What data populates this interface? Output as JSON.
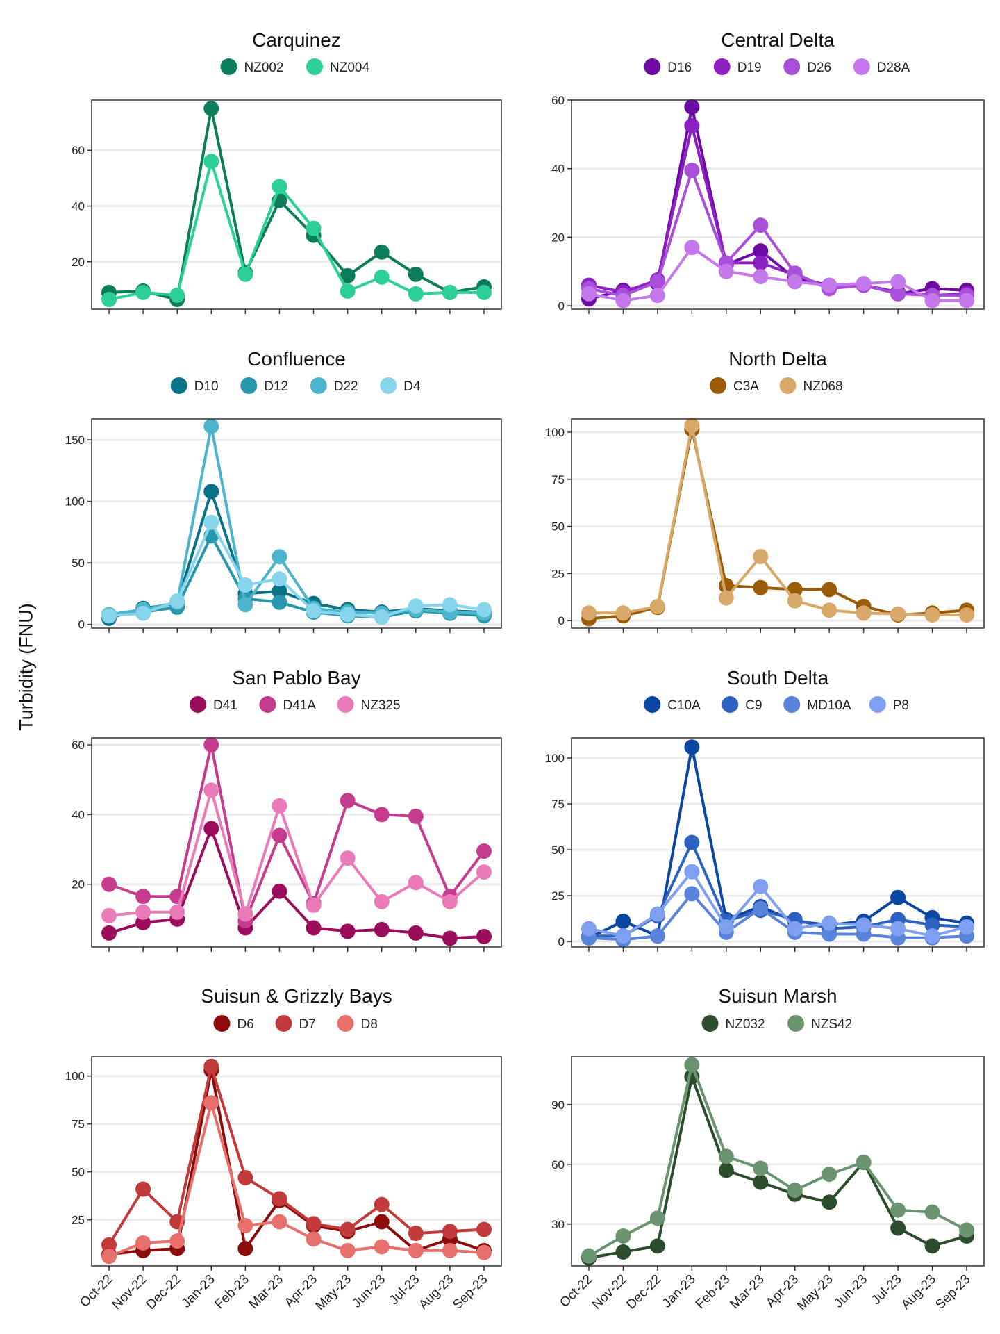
{
  "figure": {
    "y_axis_label": "Turbidity (FNU)",
    "x_tick_labels": [
      "Oct-22",
      "Nov-22",
      "Dec-22",
      "Jan-23",
      "Feb-23",
      "Mar-23",
      "Apr-23",
      "May-23",
      "Jun-23",
      "Jul-23",
      "Aug-23",
      "Sep-23"
    ]
  },
  "chart_data": [
    {
      "type": "line",
      "title": "Carquinez",
      "x": [
        "Oct-22",
        "Nov-22",
        "Dec-22",
        "Jan-23",
        "Feb-23",
        "Mar-23",
        "Apr-23",
        "May-23",
        "Jun-23",
        "Jul-23",
        "Aug-23",
        "Sep-23"
      ],
      "ylim": [
        3,
        78
      ],
      "yticks": [
        20,
        40,
        60
      ],
      "grid": "horizontal",
      "legend_position": "top",
      "series": [
        {
          "name": "NZ002",
          "color": "#0b7d5a",
          "values": [
            9,
            9.5,
            6.5,
            75,
            16,
            42,
            29.5,
            15,
            23.5,
            15.5,
            9,
            11
          ]
        },
        {
          "name": "NZ004",
          "color": "#2ccf98",
          "values": [
            6.5,
            9,
            8,
            56,
            15.5,
            47,
            32,
            9.5,
            14.5,
            8.5,
            9,
            9
          ]
        }
      ]
    },
    {
      "type": "line",
      "title": "Central Delta",
      "x": [
        "Oct-22",
        "Nov-22",
        "Dec-22",
        "Jan-23",
        "Feb-23",
        "Mar-23",
        "Apr-23",
        "May-23",
        "Jun-23",
        "Jul-23",
        "Aug-23",
        "Sep-23"
      ],
      "ylim": [
        -1,
        60
      ],
      "yticks": [
        0,
        20,
        40,
        60
      ],
      "grid": "horizontal",
      "legend_position": "top",
      "series": [
        {
          "name": "D16",
          "color": "#6d0aa3",
          "values": [
            2,
            4.5,
            6.5,
            58,
            12,
            16,
            8,
            6,
            6,
            3.5,
            5,
            4.5
          ]
        },
        {
          "name": "D19",
          "color": "#8c20c2",
          "values": [
            6,
            4,
            7.5,
            52.5,
            12.5,
            12.5,
            9,
            5,
            6,
            4,
            3,
            3.5
          ]
        },
        {
          "name": "D26",
          "color": "#a94fd9",
          "values": [
            5,
            3,
            7,
            39.5,
            12.5,
            23.5,
            9.5,
            5,
            6,
            3.5,
            3,
            3
          ]
        },
        {
          "name": "D28A",
          "color": "#c577ec",
          "values": [
            3.5,
            1.5,
            3,
            17,
            10,
            8.5,
            7,
            6,
            6.5,
            7,
            1.5,
            1.5
          ]
        }
      ]
    },
    {
      "type": "line",
      "title": "Confluence",
      "x": [
        "Oct-22",
        "Nov-22",
        "Dec-22",
        "Jan-23",
        "Feb-23",
        "Mar-23",
        "Apr-23",
        "May-23",
        "Jun-23",
        "Jul-23",
        "Aug-23",
        "Sep-23"
      ],
      "ylim": [
        -3,
        167
      ],
      "yticks": [
        0,
        50,
        100,
        150
      ],
      "grid": "horizontal",
      "legend_position": "top",
      "series": [
        {
          "name": "D10",
          "color": "#0b7388",
          "values": [
            5,
            13,
            17,
            108,
            25,
            27,
            17,
            12,
            10,
            13,
            11,
            10
          ]
        },
        {
          "name": "D12",
          "color": "#2797ad",
          "values": [
            7,
            10,
            14,
            72,
            21,
            18,
            10,
            7,
            6,
            11,
            9,
            7
          ]
        },
        {
          "name": "D22",
          "color": "#4cb4cd",
          "values": [
            8,
            12,
            18,
            161,
            16,
            55,
            13,
            10,
            9,
            12,
            10,
            9
          ]
        },
        {
          "name": "D4",
          "color": "#86d5ec",
          "values": [
            7,
            9,
            19,
            83,
            32,
            37,
            11,
            8,
            6,
            15,
            16,
            12
          ]
        }
      ]
    },
    {
      "type": "line",
      "title": "North Delta",
      "x": [
        "Oct-22",
        "Nov-22",
        "Dec-22",
        "Jan-23",
        "Feb-23",
        "Mar-23",
        "Apr-23",
        "May-23",
        "Jun-23",
        "Jul-23",
        "Aug-23",
        "Sep-23"
      ],
      "ylim": [
        -4,
        107
      ],
      "yticks": [
        0,
        25,
        50,
        75,
        100
      ],
      "grid": "horizontal",
      "legend_position": "top",
      "series": [
        {
          "name": "C3A",
          "color": "#9a5c06",
          "values": [
            1,
            2.5,
            7,
            101.5,
            18.5,
            17.5,
            16.5,
            16.5,
            7.5,
            3,
            4,
            5.5
          ]
        },
        {
          "name": "NZ068",
          "color": "#d8a868",
          "values": [
            4,
            4,
            7.5,
            103.5,
            12,
            34,
            10.5,
            5.5,
            4,
            3.5,
            3,
            3
          ]
        }
      ]
    },
    {
      "type": "line",
      "title": "San Pablo Bay",
      "x": [
        "Oct-22",
        "Nov-22",
        "Dec-22",
        "Jan-23",
        "Feb-23",
        "Mar-23",
        "Apr-23",
        "May-23",
        "Jun-23",
        "Jul-23",
        "Aug-23",
        "Sep-23"
      ],
      "ylim": [
        2,
        62
      ],
      "yticks": [
        20,
        40,
        60
      ],
      "grid": "horizontal",
      "legend_position": "top",
      "series": [
        {
          "name": "D41",
          "color": "#9c0c5c",
          "values": [
            6,
            9,
            10,
            36,
            7.5,
            18,
            7.5,
            6.5,
            7,
            6,
            4.5,
            5
          ]
        },
        {
          "name": "D41A",
          "color": "#c53c8e",
          "values": [
            20,
            16.5,
            16.5,
            60,
            9.5,
            34,
            14.5,
            44,
            40,
            39.5,
            16.5,
            29.5
          ]
        },
        {
          "name": "NZ325",
          "color": "#ea7ab8",
          "values": [
            11,
            12,
            12,
            47,
            11.5,
            42.5,
            14,
            27.5,
            15,
            20.5,
            15,
            23.5
          ]
        }
      ]
    },
    {
      "type": "line",
      "title": "South Delta",
      "x": [
        "Oct-22",
        "Nov-22",
        "Dec-22",
        "Jan-23",
        "Feb-23",
        "Mar-23",
        "Apr-23",
        "May-23",
        "Jun-23",
        "Jul-23",
        "Aug-23",
        "Sep-23"
      ],
      "ylim": [
        -3,
        111
      ],
      "yticks": [
        0,
        25,
        50,
        75,
        100
      ],
      "grid": "horizontal",
      "legend_position": "top",
      "series": [
        {
          "name": "C10A",
          "color": "#0b46a3",
          "values": [
            2,
            11,
            3,
            106,
            12,
            19,
            11,
            9,
            11,
            24,
            13,
            10
          ]
        },
        {
          "name": "C9",
          "color": "#2e62c2",
          "values": [
            3,
            3,
            14,
            54,
            11,
            17,
            12,
            7,
            8,
            12,
            9,
            8
          ]
        },
        {
          "name": "MD10A",
          "color": "#5a84dc",
          "values": [
            2,
            1,
            3,
            26,
            5,
            18,
            5,
            4,
            4,
            2,
            2,
            3
          ]
        },
        {
          "name": "P8",
          "color": "#7f9ff0",
          "values": [
            7,
            3,
            15,
            38,
            8,
            30,
            7,
            10,
            9,
            7,
            3,
            8
          ]
        }
      ]
    },
    {
      "type": "line",
      "title": "Suisun & Grizzly Bays",
      "x": [
        "Oct-22",
        "Nov-22",
        "Dec-22",
        "Jan-23",
        "Feb-23",
        "Mar-23",
        "Apr-23",
        "May-23",
        "Jun-23",
        "Jul-23",
        "Aug-23",
        "Sep-23"
      ],
      "ylim": [
        1,
        110
      ],
      "yticks": [
        25,
        50,
        75,
        100
      ],
      "grid": "horizontal",
      "legend_position": "top",
      "series": [
        {
          "name": "D6",
          "color": "#8c0c0c",
          "values": [
            7,
            9,
            10,
            103,
            10,
            35,
            22,
            19,
            24,
            9,
            15,
            9
          ]
        },
        {
          "name": "D7",
          "color": "#c23a3a",
          "values": [
            12,
            41,
            24,
            105,
            47,
            36,
            23,
            20,
            33,
            18,
            19,
            20
          ]
        },
        {
          "name": "D8",
          "color": "#e8706c",
          "values": [
            6,
            13,
            14,
            86,
            22,
            24,
            15,
            9,
            11,
            9,
            9,
            8
          ]
        }
      ]
    },
    {
      "type": "line",
      "title": "Suisun Marsh",
      "x": [
        "Oct-22",
        "Nov-22",
        "Dec-22",
        "Jan-23",
        "Feb-23",
        "Mar-23",
        "Apr-23",
        "May-23",
        "Jun-23",
        "Jul-23",
        "Aug-23",
        "Sep-23"
      ],
      "ylim": [
        9,
        114
      ],
      "yticks": [
        30,
        60,
        90
      ],
      "grid": "horizontal",
      "legend_position": "top",
      "series": [
        {
          "name": "NZ032",
          "color": "#2c4d2c",
          "values": [
            13,
            16,
            19,
            104,
            57,
            51,
            45,
            41,
            61,
            28,
            19,
            24
          ]
        },
        {
          "name": "NZS42",
          "color": "#6a9470",
          "values": [
            14,
            24,
            33,
            110,
            64,
            58,
            47,
            55,
            61,
            37,
            36,
            27
          ]
        }
      ]
    }
  ]
}
